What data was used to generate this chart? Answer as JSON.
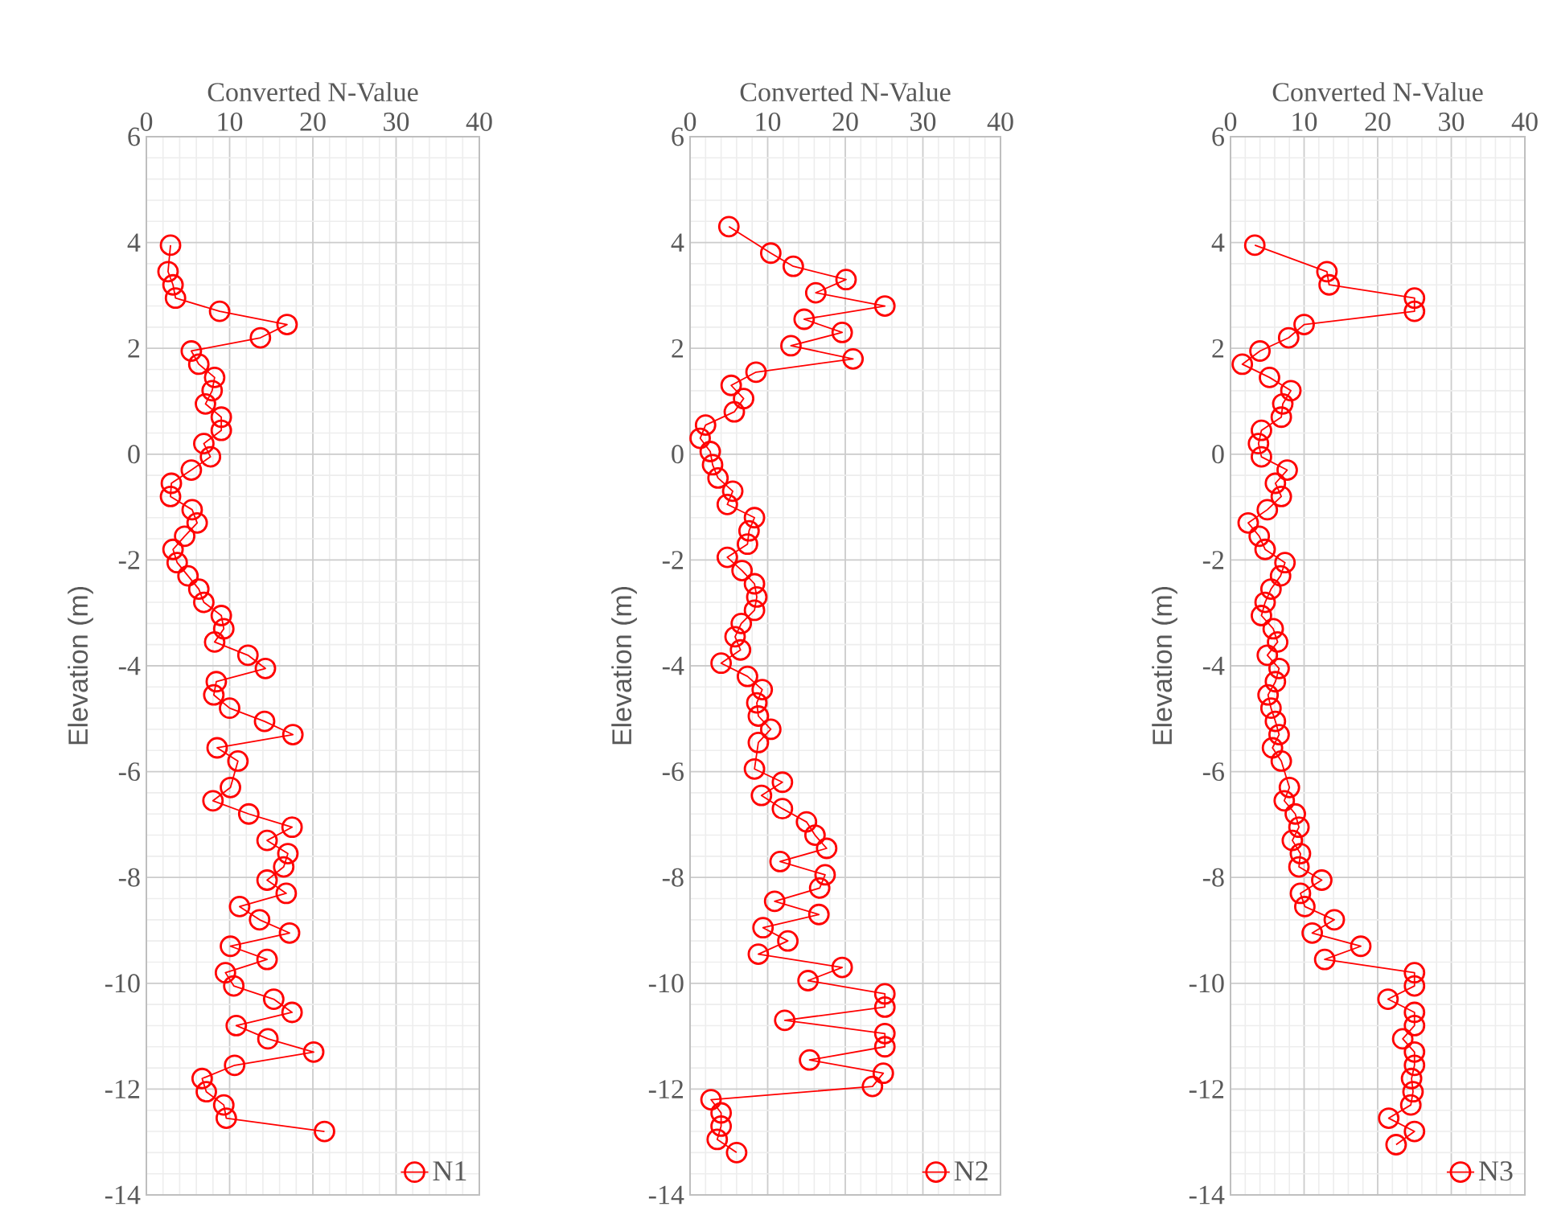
{
  "chart_data": [
    {
      "type": "line",
      "xlabel": "Converted N-Value",
      "ylabel": "Elevation (m)",
      "xlim": [
        0,
        40
      ],
      "xticks": [
        0,
        10,
        20,
        30,
        40
      ],
      "ylim": [
        -14,
        6
      ],
      "yticks": [
        -14,
        -12,
        -10,
        -8,
        -6,
        -4,
        -2,
        0,
        2,
        4,
        6
      ],
      "grid": true,
      "legend": "bottom right",
      "marker": "circle",
      "line_style": "solid",
      "series": [
        {
          "name": "N1",
          "color": "#ff0000",
          "x": [
            2.9,
            2.6,
            3.2,
            3.5,
            8.8,
            16.9,
            13.7,
            5.4,
            6.3,
            8.2,
            7.9,
            7.1,
            9.0,
            9.0,
            6.9,
            7.7,
            5.4,
            3.0,
            2.9,
            5.5,
            6.1,
            4.6,
            3.2,
            3.7,
            5.0,
            6.3,
            6.9,
            9.0,
            9.3,
            8.2,
            12.2,
            14.3,
            8.4,
            8.1,
            10.0,
            14.2,
            17.6,
            8.5,
            11.0,
            10.1,
            8.0,
            12.3,
            17.5,
            14.5,
            17.0,
            16.5,
            14.5,
            16.8,
            11.2,
            13.6,
            17.2,
            10.1,
            14.5,
            9.5,
            10.5,
            15.3,
            17.5,
            10.8,
            14.6,
            20.1,
            10.6,
            6.7,
            7.2,
            9.3,
            9.6,
            21.4
          ],
          "values": [
            3.95,
            3.45,
            3.2,
            2.95,
            2.7,
            2.45,
            2.2,
            1.95,
            1.7,
            1.45,
            1.2,
            0.95,
            0.7,
            0.45,
            0.2,
            -0.05,
            -0.3,
            -0.55,
            -0.8,
            -1.05,
            -1.3,
            -1.55,
            -1.8,
            -2.05,
            -2.3,
            -2.55,
            -2.8,
            -3.05,
            -3.3,
            -3.55,
            -3.8,
            -4.05,
            -4.3,
            -4.55,
            -4.8,
            -5.05,
            -5.3,
            -5.55,
            -5.8,
            -6.3,
            -6.55,
            -6.8,
            -7.05,
            -7.3,
            -7.55,
            -7.8,
            -8.05,
            -8.3,
            -8.55,
            -8.8,
            -9.05,
            -9.3,
            -9.55,
            -9.8,
            -10.05,
            -10.3,
            -10.55,
            -10.8,
            -11.05,
            -11.3,
            -11.55,
            -11.8,
            -12.05,
            -12.3,
            -12.55,
            -12.8
          ]
        }
      ]
    },
    {
      "type": "line",
      "xlabel": "Converted N-Value",
      "ylabel": "Elevation (m)",
      "xlim": [
        0,
        40
      ],
      "xticks": [
        0,
        10,
        20,
        30,
        40
      ],
      "ylim": [
        -14,
        6
      ],
      "yticks": [
        -14,
        -12,
        -10,
        -8,
        -6,
        -4,
        -2,
        0,
        2,
        4,
        6
      ],
      "grid": true,
      "legend": "bottom right",
      "marker": "circle",
      "line_style": "solid",
      "series": [
        {
          "name": "N2",
          "color": "#ff0000",
          "x": [
            5.0,
            10.4,
            13.3,
            20.1,
            16.2,
            25.1,
            14.7,
            19.6,
            13.0,
            21.0,
            8.5,
            5.3,
            6.9,
            5.7,
            2.0,
            1.3,
            2.6,
            2.9,
            3.6,
            5.5,
            4.8,
            8.3,
            7.6,
            7.4,
            4.8,
            6.7,
            8.3,
            8.6,
            8.3,
            6.6,
            5.8,
            6.5,
            4.0,
            7.4,
            9.3,
            8.6,
            8.8,
            10.4,
            8.8,
            8.3,
            11.9,
            9.2,
            11.9,
            15.0,
            16.1,
            17.6,
            11.6,
            17.4,
            16.7,
            10.9,
            16.6,
            9.4,
            12.6,
            8.8,
            19.6,
            15.2,
            25.1,
            25.1,
            12.2,
            25.1,
            25.1,
            15.4,
            24.9,
            23.5,
            2.7,
            4.0,
            4.0,
            3.5,
            6.0
          ],
          "values": [
            4.3,
            3.8,
            3.55,
            3.3,
            3.05,
            2.8,
            2.55,
            2.3,
            2.05,
            1.8,
            1.55,
            1.3,
            1.05,
            0.8,
            0.55,
            0.3,
            0.05,
            -0.2,
            -0.45,
            -0.7,
            -0.95,
            -1.2,
            -1.45,
            -1.7,
            -1.95,
            -2.2,
            -2.45,
            -2.7,
            -2.95,
            -3.2,
            -3.45,
            -3.7,
            -3.95,
            -4.2,
            -4.45,
            -4.7,
            -4.95,
            -5.2,
            -5.45,
            -5.95,
            -6.2,
            -6.45,
            -6.7,
            -6.95,
            -7.2,
            -7.45,
            -7.7,
            -7.95,
            -8.2,
            -8.45,
            -8.7,
            -8.95,
            -9.2,
            -9.45,
            -9.7,
            -9.95,
            -10.2,
            -10.45,
            -10.7,
            -10.95,
            -11.2,
            -11.45,
            -11.7,
            -11.95,
            -12.2,
            -12.45,
            -12.7,
            -12.95,
            -13.2
          ]
        }
      ]
    },
    {
      "type": "line",
      "xlabel": "Converted N-Value",
      "ylabel": "Elevation (m)",
      "xlim": [
        0,
        40
      ],
      "xticks": [
        0,
        10,
        20,
        30,
        40
      ],
      "ylim": [
        -14,
        6
      ],
      "yticks": [
        -14,
        -12,
        -10,
        -8,
        -6,
        -4,
        -2,
        0,
        2,
        4,
        6
      ],
      "grid": true,
      "legend": "bottom right",
      "marker": "circle",
      "line_style": "solid",
      "series": [
        {
          "name": "N3",
          "color": "#ff0000",
          "x": [
            3.3,
            13.1,
            13.4,
            25.0,
            25.0,
            10.0,
            7.9,
            4.0,
            1.6,
            5.3,
            8.2,
            7.1,
            6.9,
            4.2,
            3.8,
            4.2,
            7.7,
            6.1,
            6.9,
            5.0,
            2.4,
            3.9,
            4.7,
            7.4,
            6.8,
            5.5,
            4.7,
            4.2,
            5.8,
            6.4,
            5.0,
            6.6,
            6.1,
            5.1,
            5.5,
            6.1,
            6.6,
            5.7,
            6.9,
            8.0,
            7.3,
            8.8,
            9.3,
            8.4,
            9.5,
            9.3,
            12.4,
            9.5,
            10.1,
            14.1,
            11.1,
            17.7,
            12.8,
            25.0,
            25.0,
            21.4,
            25.0,
            25.0,
            23.4,
            25.0,
            25.0,
            24.6,
            24.8,
            24.5,
            21.5,
            25.0,
            22.5
          ],
          "values": [
            3.95,
            3.45,
            3.2,
            2.95,
            2.7,
            2.45,
            2.2,
            1.95,
            1.7,
            1.45,
            1.2,
            0.95,
            0.7,
            0.45,
            0.2,
            -0.05,
            -0.3,
            -0.55,
            -0.8,
            -1.05,
            -1.3,
            -1.55,
            -1.8,
            -2.05,
            -2.3,
            -2.55,
            -2.8,
            -3.05,
            -3.3,
            -3.55,
            -3.8,
            -4.05,
            -4.3,
            -4.55,
            -4.8,
            -5.05,
            -5.3,
            -5.55,
            -5.8,
            -6.3,
            -6.55,
            -6.8,
            -7.05,
            -7.3,
            -7.55,
            -7.8,
            -8.05,
            -8.3,
            -8.55,
            -8.8,
            -9.05,
            -9.3,
            -9.55,
            -9.8,
            -10.05,
            -10.3,
            -10.55,
            -10.8,
            -11.05,
            -11.3,
            -11.55,
            -11.8,
            -12.05,
            -12.3,
            -12.55,
            -12.8,
            -13.05
          ]
        }
      ]
    }
  ]
}
